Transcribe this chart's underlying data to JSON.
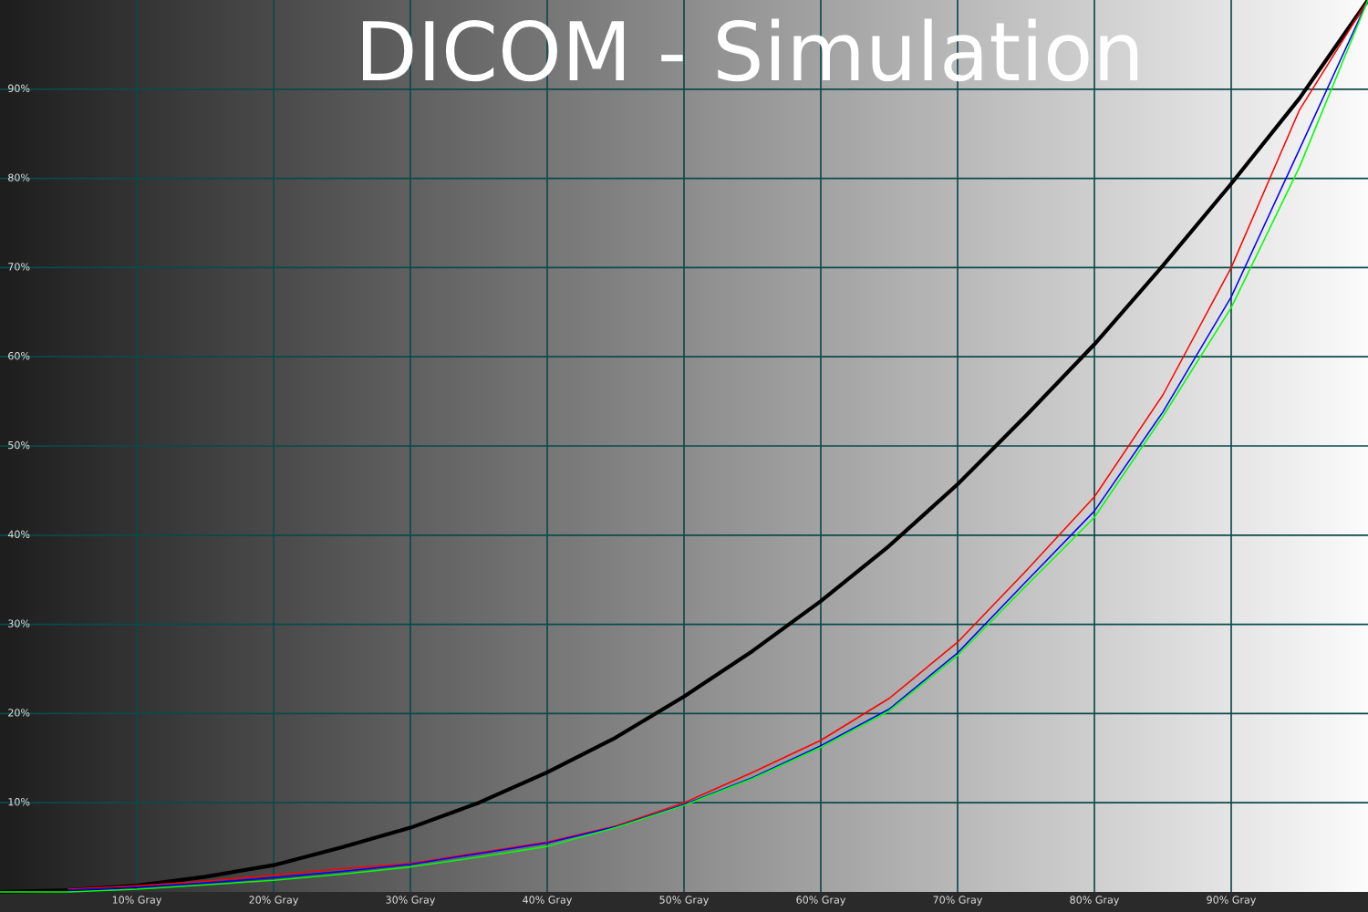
{
  "chart_data": {
    "type": "line",
    "title": "DICOM - Simulation",
    "x": [
      0,
      5,
      10,
      15,
      20,
      25,
      30,
      35,
      40,
      45,
      50,
      55,
      60,
      65,
      70,
      75,
      80,
      85,
      90,
      95,
      100
    ],
    "series": [
      {
        "color": "#000000",
        "values": [
          0,
          0.2,
          0.7,
          1.7,
          3.0,
          5.0,
          7.2,
          10.0,
          13.4,
          17.3,
          21.9,
          27.0,
          32.6,
          38.8,
          45.7,
          53.4,
          61.4,
          70.2,
          79.4,
          89.0,
          100
        ]
      },
      {
        "color": "#ff0000",
        "values": [
          null,
          0.3,
          0.7,
          1.2,
          1.9,
          2.6,
          3.2,
          4.4,
          5.6,
          7.4,
          10.0,
          13.4,
          17.0,
          21.7,
          28.0,
          36.0,
          44.3,
          55.7,
          70.0,
          87.7,
          100
        ]
      },
      {
        "color": "#0000ff",
        "values": [
          null,
          0.2,
          0.5,
          1.0,
          1.6,
          2.3,
          3.1,
          4.3,
          5.5,
          7.3,
          9.8,
          12.8,
          16.4,
          20.5,
          26.8,
          34.8,
          42.7,
          53.8,
          66.7,
          83.3,
          100
        ]
      },
      {
        "color": "#00ff00",
        "values": [
          0,
          0.0,
          0.3,
          0.8,
          1.3,
          2.0,
          2.8,
          3.9,
          5.1,
          7.2,
          9.7,
          12.7,
          16.2,
          20.3,
          26.5,
          34.3,
          42.0,
          53.3,
          65.5,
          81.3,
          100
        ]
      }
    ],
    "xlim": [
      0,
      100
    ],
    "ylim": [
      0,
      100
    ],
    "xticks": [
      {
        "value": 10,
        "label": "10% Gray"
      },
      {
        "value": 20,
        "label": "20% Gray"
      },
      {
        "value": 30,
        "label": "30% Gray"
      },
      {
        "value": 40,
        "label": "40% Gray"
      },
      {
        "value": 50,
        "label": "50% Gray"
      },
      {
        "value": 60,
        "label": "60% Gray"
      },
      {
        "value": 70,
        "label": "70% Gray"
      },
      {
        "value": 80,
        "label": "80% Gray"
      },
      {
        "value": 90,
        "label": "90% Gray"
      }
    ],
    "yticks": [
      {
        "value": 10,
        "label": "10%"
      },
      {
        "value": 20,
        "label": "20%"
      },
      {
        "value": 30,
        "label": "30%"
      },
      {
        "value": 40,
        "label": "40%"
      },
      {
        "value": 50,
        "label": "50%"
      },
      {
        "value": 60,
        "label": "60%"
      },
      {
        "value": 70,
        "label": "70%"
      },
      {
        "value": 80,
        "label": "80%"
      },
      {
        "value": 90,
        "label": "90%"
      }
    ],
    "grid": true,
    "marker": "none",
    "line_style": "solid"
  }
}
